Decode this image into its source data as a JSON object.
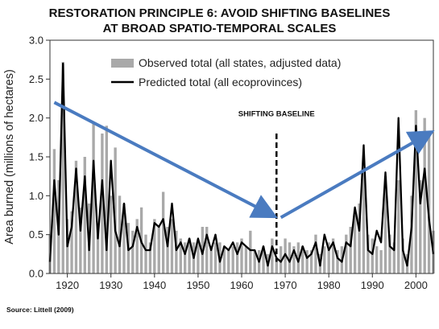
{
  "header": {
    "title_line1": "RESTORATION PRINCIPLE 6: AVOID SHIFTING BASELINES",
    "title_line2": "AT BROAD SPATIO-TEMPORAL SCALES"
  },
  "source": "Source: Littell (2009)",
  "chart_data": {
    "type": "bar",
    "ylabel": "Area burned (millions of hectares)",
    "xlabel": "",
    "xlim": [
      1916,
      2004
    ],
    "ylim": [
      0,
      3.0
    ],
    "x_ticks": [
      "1920",
      "1930",
      "1940",
      "1950",
      "1960",
      "1970",
      "1980",
      "1990",
      "2000"
    ],
    "y_ticks": [
      "0.0",
      "0.5",
      "1.0",
      "1.5",
      "2.0",
      "2.5",
      "3.0"
    ],
    "legend_position": "top-center",
    "annotation": "SHIFTING BASELINE",
    "baseline_year": 1968,
    "arrows": [
      {
        "from": [
          1917,
          2.2
        ],
        "to": [
          1967,
          0.75
        ]
      },
      {
        "from": [
          1969,
          0.72
        ],
        "to": [
          2003,
          1.8
        ]
      }
    ],
    "colors": {
      "bar": "#a9a9a9",
      "line": "#000000",
      "arrow": "#4a7bc0"
    },
    "years": [
      1916,
      1917,
      1918,
      1919,
      1920,
      1921,
      1922,
      1923,
      1924,
      1925,
      1926,
      1927,
      1928,
      1929,
      1930,
      1931,
      1932,
      1933,
      1934,
      1935,
      1936,
      1937,
      1938,
      1939,
      1940,
      1941,
      1942,
      1943,
      1944,
      1945,
      1946,
      1947,
      1948,
      1949,
      1950,
      1951,
      1952,
      1953,
      1954,
      1955,
      1956,
      1957,
      1958,
      1959,
      1960,
      1961,
      1962,
      1963,
      1964,
      1965,
      1966,
      1967,
      1968,
      1969,
      1970,
      1971,
      1972,
      1973,
      1974,
      1975,
      1976,
      1977,
      1978,
      1979,
      1980,
      1981,
      1982,
      1983,
      1984,
      1985,
      1986,
      1987,
      1988,
      1989,
      1990,
      1991,
      1992,
      1993,
      1994,
      1995,
      1996,
      1997,
      1998,
      1999,
      2000,
      2001,
      2002,
      2003,
      2004
    ],
    "series": [
      {
        "name": "Observed total (all states, adjusted data)",
        "type": "bar",
        "values": [
          0.5,
          1.6,
          1.2,
          2.72,
          0.7,
          0.8,
          1.45,
          0.85,
          1.5,
          0.9,
          1.95,
          0.6,
          1.8,
          1.9,
          1.0,
          1.62,
          1.0,
          0.9,
          0.65,
          0.55,
          0.7,
          0.85,
          0.5,
          0.4,
          0.7,
          0.6,
          1.05,
          0.6,
          0.7,
          0.55,
          0.45,
          0.4,
          0.45,
          0.4,
          0.4,
          0.6,
          0.6,
          0.35,
          0.4,
          0.4,
          0.35,
          0.3,
          0.35,
          0.4,
          0.45,
          0.35,
          0.55,
          0.3,
          0.3,
          0.35,
          0.25,
          0.45,
          0.2,
          0.35,
          0.45,
          0.4,
          0.35,
          0.4,
          0.35,
          0.3,
          0.3,
          0.5,
          0.25,
          0.35,
          0.4,
          0.45,
          0.3,
          0.35,
          0.5,
          0.6,
          0.75,
          0.9,
          1.3,
          0.5,
          0.45,
          0.35,
          0.3,
          1.25,
          0.5,
          0.4,
          1.2,
          0.45,
          0.25,
          1.0,
          2.1,
          1.2,
          2.0,
          1.8,
          0.55
        ]
      },
      {
        "name": "Predicted total (all ecoprovinces)",
        "type": "line",
        "values": [
          0.15,
          1.2,
          0.5,
          2.7,
          0.35,
          0.6,
          1.35,
          0.55,
          1.25,
          0.3,
          1.45,
          0.45,
          1.2,
          0.3,
          1.45,
          0.55,
          0.35,
          0.9,
          0.3,
          0.35,
          0.6,
          0.4,
          0.3,
          0.3,
          0.65,
          0.6,
          0.7,
          0.35,
          0.9,
          0.3,
          0.4,
          0.25,
          0.45,
          0.2,
          0.45,
          0.25,
          0.5,
          0.3,
          0.5,
          0.15,
          0.35,
          0.3,
          0.4,
          0.25,
          0.4,
          0.35,
          0.3,
          0.3,
          0.15,
          0.35,
          0.1,
          0.35,
          0.2,
          0.15,
          0.25,
          0.15,
          0.3,
          0.15,
          0.35,
          0.2,
          0.25,
          0.4,
          0.1,
          0.5,
          0.3,
          0.4,
          0.2,
          0.15,
          0.4,
          0.35,
          0.85,
          0.55,
          1.65,
          0.3,
          0.25,
          0.55,
          0.4,
          1.3,
          0.35,
          0.3,
          2.0,
          0.3,
          0.1,
          0.6,
          1.9,
          0.9,
          1.35,
          0.7,
          0.25
        ]
      }
    ]
  }
}
